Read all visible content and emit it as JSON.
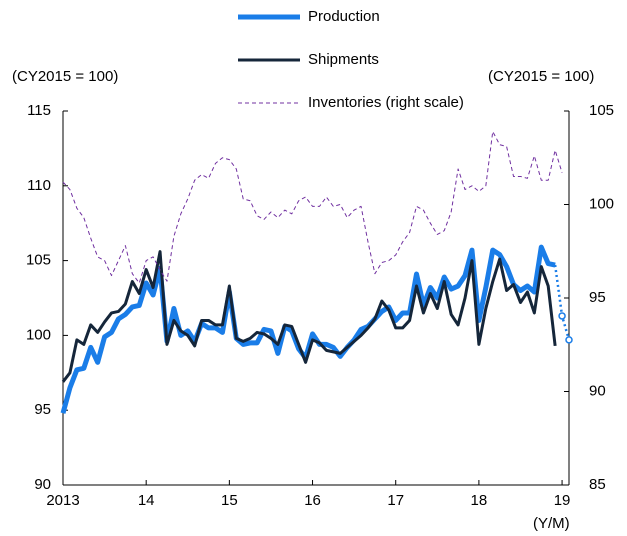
{
  "chart_data": {
    "type": "line",
    "y_label": "(CY2015 = 100)",
    "y2_label": "(CY2015 = 100)",
    "x_label": "(Y/M)",
    "categories": [
      "2013",
      null,
      null,
      null,
      null,
      null,
      null,
      null,
      null,
      null,
      null,
      null,
      "14",
      null,
      null,
      null,
      null,
      null,
      null,
      null,
      null,
      null,
      null,
      null,
      "15",
      null,
      null,
      null,
      null,
      null,
      null,
      null,
      null,
      null,
      null,
      null,
      "16",
      null,
      null,
      null,
      null,
      null,
      null,
      null,
      null,
      null,
      null,
      null,
      "17",
      null,
      null,
      null,
      null,
      null,
      null,
      null,
      null,
      null,
      null,
      null,
      "18",
      null,
      null,
      null,
      null,
      null,
      null,
      null,
      null,
      null,
      null,
      null,
      "19",
      null
    ],
    "ylim": [
      90,
      115
    ],
    "yticks": [
      90,
      95,
      100,
      105,
      110,
      115
    ],
    "y2lim": [
      85,
      105
    ],
    "y2ticks": [
      85,
      90,
      95,
      100,
      105
    ],
    "series": [
      {
        "name": "Production",
        "color": "#1a7de8",
        "values": [
          94.8,
          96.5,
          97.7,
          97.8,
          99.2,
          98.2,
          99.9,
          100.2,
          101.1,
          101.4,
          101.9,
          102.0,
          103.5,
          102.7,
          104.5,
          99.6,
          101.8,
          100.0,
          100.3,
          99.6,
          100.8,
          100.5,
          100.5,
          100.2,
          102.9,
          99.8,
          99.4,
          99.5,
          99.5,
          100.4,
          100.3,
          98.8,
          100.6,
          100.3,
          99.1,
          98.5,
          100.1,
          99.4,
          99.4,
          99.2,
          98.6,
          99.2,
          99.7,
          100.4,
          100.6,
          101.1,
          101.6,
          101.9,
          101.0,
          101.5,
          101.5,
          104.1,
          102.0,
          103.2,
          102.5,
          103.9,
          103.1,
          103.3,
          104.0,
          105.7,
          101.0,
          103.2,
          105.7,
          105.4,
          104.6,
          103.4,
          103.0,
          103.3,
          102.9,
          105.9,
          104.8,
          104.7,
          null,
          null
        ]
      },
      {
        "name": "Shipments",
        "color": "#15263a",
        "values": [
          96.9,
          97.5,
          99.7,
          99.4,
          100.7,
          100.2,
          100.9,
          101.5,
          101.6,
          102.1,
          103.6,
          102.8,
          104.4,
          103.2,
          105.6,
          99.4,
          101.0,
          100.3,
          100.0,
          99.3,
          101.0,
          101.0,
          100.7,
          100.7,
          103.3,
          99.8,
          99.6,
          99.8,
          100.2,
          100.1,
          99.8,
          99.4,
          100.7,
          100.6,
          99.4,
          98.2,
          99.7,
          99.5,
          99.0,
          98.9,
          98.8,
          99.2,
          99.6,
          100.0,
          100.5,
          101.1,
          102.3,
          101.7,
          100.5,
          100.5,
          101.0,
          103.3,
          101.5,
          102.8,
          101.8,
          103.6,
          101.4,
          100.7,
          102.5,
          105.0,
          99.4,
          101.8,
          103.6,
          105.1,
          103.0,
          103.4,
          102.2,
          102.9,
          101.5,
          104.6,
          103.3,
          99.3,
          null,
          null
        ]
      },
      {
        "name": "Inventories (right scale)",
        "color": "#7030a0",
        "axis": "y2",
        "dashed": true,
        "values": [
          101.2,
          100.8,
          99.8,
          99.3,
          98.2,
          97.2,
          97.0,
          96.2,
          97.0,
          97.8,
          96.3,
          95.8,
          97.0,
          97.2,
          96.5,
          95.9,
          98.3,
          99.5,
          100.3,
          101.3,
          101.6,
          101.4,
          102.2,
          102.5,
          102.4,
          101.9,
          100.3,
          100.2,
          99.4,
          99.2,
          99.6,
          99.3,
          99.7,
          99.5,
          100.2,
          100.4,
          99.9,
          99.9,
          100.4,
          99.9,
          100.0,
          99.3,
          99.7,
          99.9,
          98.0,
          96.3,
          96.9,
          97.0,
          97.3,
          98.0,
          98.5,
          99.9,
          99.7,
          99.0,
          98.4,
          98.6,
          99.6,
          101.9,
          100.8,
          101.0,
          100.7,
          101.0,
          103.9,
          103.2,
          103.1,
          101.5,
          101.5,
          101.4,
          102.6,
          101.3,
          101.3,
          102.9,
          101.7,
          null
        ]
      },
      {
        "color": "#1a7de8",
        "forecast": true,
        "values": [
          null,
          null,
          null,
          null,
          null,
          null,
          null,
          null,
          null,
          null,
          null,
          null,
          null,
          null,
          null,
          null,
          null,
          null,
          null,
          null,
          null,
          null,
          null,
          null,
          null,
          null,
          null,
          null,
          null,
          null,
          null,
          null,
          null,
          null,
          null,
          null,
          null,
          null,
          null,
          null,
          null,
          null,
          null,
          null,
          null,
          null,
          null,
          null,
          null,
          null,
          null,
          null,
          null,
          null,
          null,
          null,
          null,
          null,
          null,
          null,
          null,
          null,
          null,
          null,
          null,
          null,
          null,
          null,
          null,
          null,
          null,
          null,
          101.3,
          99.7
        ]
      }
    ]
  }
}
